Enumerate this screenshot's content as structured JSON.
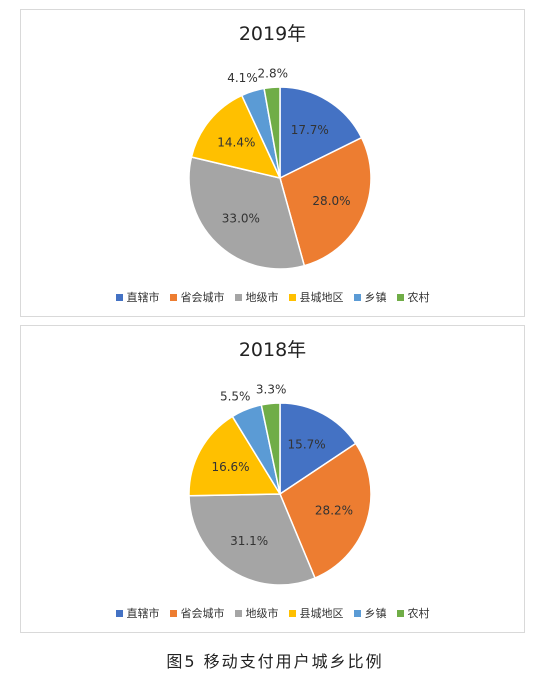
{
  "colors": [
    "#4472C4",
    "#ED7D31",
    "#A5A5A5",
    "#FFC000",
    "#5B9BD5",
    "#70AD47"
  ],
  "legend": [
    "直辖市",
    "省会城市",
    "地级市",
    "县城地区",
    "乡镇",
    "农村"
  ],
  "chart_data": [
    {
      "type": "pie",
      "title": "2019年",
      "categories": [
        "直辖市",
        "省会城市",
        "地级市",
        "县城地区",
        "乡镇",
        "农村"
      ],
      "values": [
        17.7,
        28.0,
        33.0,
        14.4,
        4.1,
        2.8
      ],
      "labels": [
        "17.7%",
        "28.0%",
        "33.0%",
        "14.4%",
        "4.1%",
        "2.8%"
      ],
      "legend_position": "bottom"
    },
    {
      "type": "pie",
      "title": "2018年",
      "categories": [
        "直辖市",
        "省会城市",
        "地级市",
        "县城地区",
        "乡镇",
        "农村"
      ],
      "values": [
        15.7,
        28.2,
        31.1,
        16.6,
        5.5,
        3.3
      ],
      "labels": [
        "15.7%",
        "28.2%",
        "31.1%",
        "16.6%",
        "5.5%",
        "3.3%"
      ],
      "legend_position": "bottom"
    }
  ],
  "caption": "图5 移动支付用户城乡比例"
}
